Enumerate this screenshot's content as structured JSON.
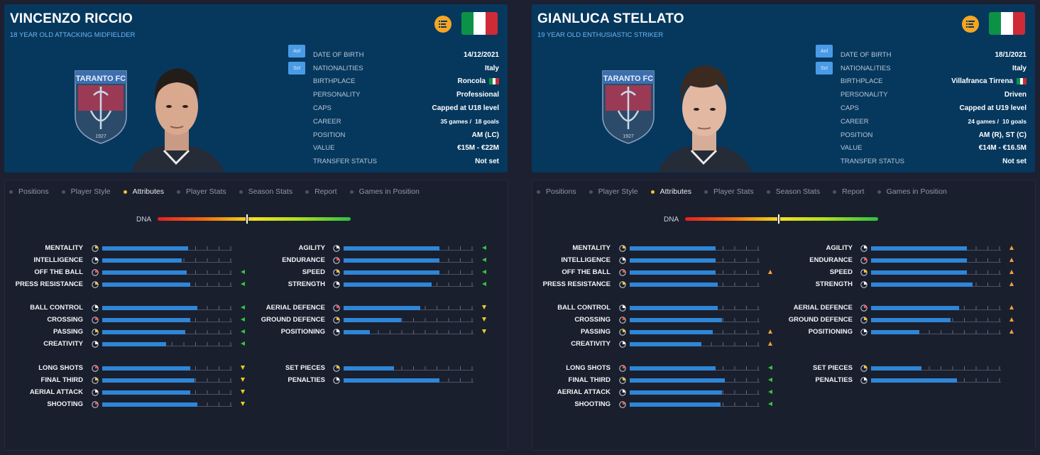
{
  "colors": {
    "accent": "#f0c030",
    "bar": "#2f86d6",
    "header_bg": "#06385e",
    "up": "#f0a040",
    "left": "#35c441",
    "down": "#e8d020"
  },
  "tabs": [
    "Positions",
    "Player Style",
    "Attributes",
    "Player Stats",
    "Season Stats",
    "Report",
    "Games in Position"
  ],
  "active_tab": "Attributes",
  "crest_text": {
    "club": "TARANTO FC",
    "year": "1927"
  },
  "tag_labels": [
    "Anl",
    "Sct"
  ],
  "info_labels": [
    "DATE OF BIRTH",
    "NATIONALITIES",
    "BIRTHPLACE",
    "PERSONALITY",
    "CAPS",
    "CAREER",
    "POSITION",
    "VALUE",
    "TRANSFER STATUS"
  ],
  "dna_label": "DNA",
  "players": [
    {
      "name": "VINCENZO RICCIO",
      "description": "18 YEAR OLD ATTACKING MIDFIELDER",
      "info": {
        "dob": "14/12/2021",
        "nationality": "Italy",
        "birthplace": "Roncola",
        "personality": "Professional",
        "caps": "Capped at U18 level",
        "career_games": "35 games /",
        "career_goals": "18 goals",
        "position": "AM (LC)",
        "value": "€15M - €22M",
        "transfer_status": "Not set"
      },
      "dna": 0.46,
      "left_groups": [
        [
          {
            "name": "MENTALITY",
            "value": 0.66,
            "arrow": ""
          },
          {
            "name": "INTELLIGENCE",
            "value": 0.61,
            "arrow": ""
          },
          {
            "name": "OFF THE BALL",
            "value": 0.65,
            "arrow": "left"
          },
          {
            "name": "PRESS RESISTANCE",
            "value": 0.68,
            "arrow": "left"
          }
        ],
        [
          {
            "name": "BALL CONTROL",
            "value": 0.73,
            "arrow": "left"
          },
          {
            "name": "CROSSING",
            "value": 0.68,
            "arrow": "left"
          },
          {
            "name": "PASSING",
            "value": 0.64,
            "arrow": "left"
          },
          {
            "name": "CREATIVITY",
            "value": 0.49,
            "arrow": "left"
          }
        ],
        [
          {
            "name": "LONG SHOTS",
            "value": 0.68,
            "arrow": "down"
          },
          {
            "name": "FINAL THIRD",
            "value": 0.71,
            "arrow": "down"
          },
          {
            "name": "AERIAL ATTACK",
            "value": 0.68,
            "arrow": "down"
          },
          {
            "name": "SHOOTING",
            "value": 0.73,
            "arrow": "down"
          }
        ]
      ],
      "right_groups": [
        [
          {
            "name": "AGILITY",
            "value": 0.74,
            "arrow": "left"
          },
          {
            "name": "ENDURANCE",
            "value": 0.74,
            "arrow": "left"
          },
          {
            "name": "SPEED",
            "value": 0.74,
            "arrow": "left"
          },
          {
            "name": "STRENGTH",
            "value": 0.68,
            "arrow": "left"
          }
        ],
        [
          {
            "name": "AERIAL DEFENCE",
            "value": 0.59,
            "arrow": "down"
          },
          {
            "name": "GROUND DEFENCE",
            "value": 0.44,
            "arrow": "down"
          },
          {
            "name": "POSITIONING",
            "value": 0.2,
            "arrow": "down"
          }
        ],
        [
          {
            "name": "SET PIECES",
            "value": 0.39,
            "arrow": ""
          },
          {
            "name": "PENALTIES",
            "value": 0.74,
            "arrow": ""
          }
        ]
      ]
    },
    {
      "name": "GIANLUCA STELLATO",
      "description": "19 YEAR OLD ENTHUSIASTIC STRIKER",
      "info": {
        "dob": "18/1/2021",
        "nationality": "Italy",
        "birthplace": "Villafranca Tirrena",
        "personality": "Driven",
        "caps": "Capped at U19 level",
        "career_games": "24 games /",
        "career_goals": "10 goals",
        "position": "AM (R), ST (C)",
        "value": "€14M - €16.5M",
        "transfer_status": "Not set"
      },
      "dna": 0.48,
      "left_groups": [
        [
          {
            "name": "MENTALITY",
            "value": 0.66,
            "arrow": ""
          },
          {
            "name": "INTELLIGENCE",
            "value": 0.66,
            "arrow": ""
          },
          {
            "name": "OFF THE BALL",
            "value": 0.66,
            "arrow": "up"
          },
          {
            "name": "PRESS RESISTANCE",
            "value": 0.68,
            "arrow": ""
          }
        ],
        [
          {
            "name": "BALL CONTROL",
            "value": 0.68,
            "arrow": ""
          },
          {
            "name": "CROSSING",
            "value": 0.71,
            "arrow": ""
          },
          {
            "name": "PASSING",
            "value": 0.64,
            "arrow": "up"
          },
          {
            "name": "CREATIVITY",
            "value": 0.55,
            "arrow": "up"
          }
        ],
        [
          {
            "name": "LONG SHOTS",
            "value": 0.66,
            "arrow": "left"
          },
          {
            "name": "FINAL THIRD",
            "value": 0.73,
            "arrow": "left"
          },
          {
            "name": "AERIAL ATTACK",
            "value": 0.71,
            "arrow": "left"
          },
          {
            "name": "SHOOTING",
            "value": 0.7,
            "arrow": "left"
          }
        ]
      ],
      "right_groups": [
        [
          {
            "name": "AGILITY",
            "value": 0.74,
            "arrow": "up"
          },
          {
            "name": "ENDURANCE",
            "value": 0.74,
            "arrow": "up"
          },
          {
            "name": "SPEED",
            "value": 0.74,
            "arrow": "up"
          },
          {
            "name": "STRENGTH",
            "value": 0.78,
            "arrow": "up"
          }
        ],
        [
          {
            "name": "AERIAL DEFENCE",
            "value": 0.68,
            "arrow": "up"
          },
          {
            "name": "GROUND DEFENCE",
            "value": 0.61,
            "arrow": "up"
          },
          {
            "name": "POSITIONING",
            "value": 0.37,
            "arrow": "up"
          }
        ],
        [
          {
            "name": "SET PIECES",
            "value": 0.39,
            "arrow": ""
          },
          {
            "name": "PENALTIES",
            "value": 0.66,
            "arrow": ""
          }
        ]
      ]
    }
  ]
}
